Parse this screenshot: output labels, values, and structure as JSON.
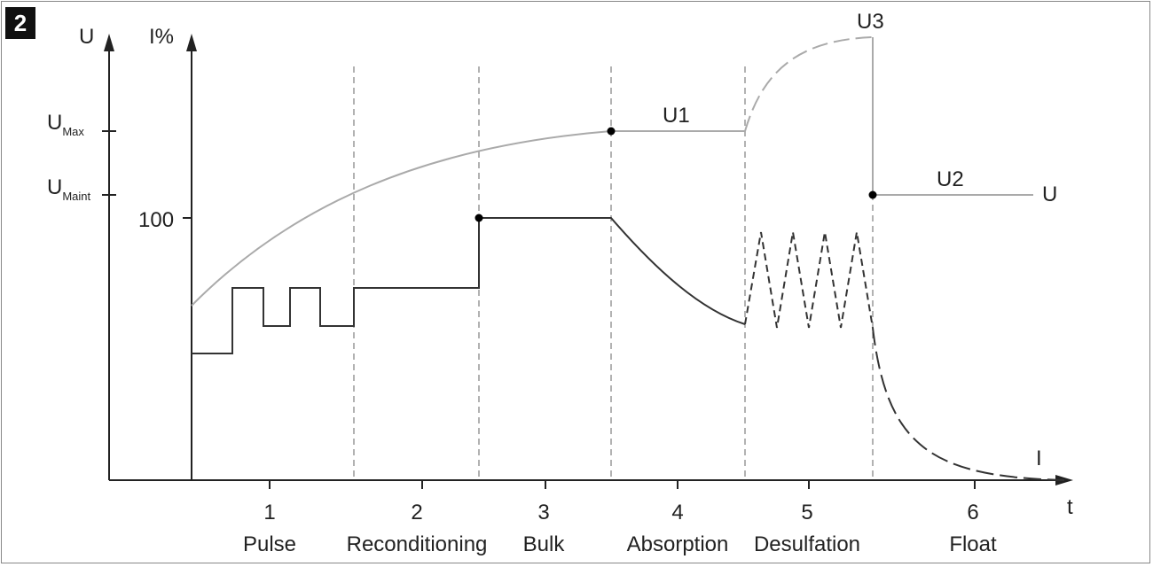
{
  "figure": {
    "badge": "2"
  },
  "axes": {
    "u_axis_label": "U",
    "i_axis_label": "I%",
    "t_axis_label": "t",
    "u_max_main": "U",
    "u_max_sub": "Max",
    "u_maint_main": "U",
    "u_maint_sub": "Maint",
    "i_100_label": "100"
  },
  "curve_labels": {
    "u1": "U1",
    "u2": "U2",
    "u3": "U3",
    "u_end": "U",
    "i_end": "I"
  },
  "phases": [
    {
      "number": "1",
      "name": "Pulse"
    },
    {
      "number": "2",
      "name": "Reconditioning"
    },
    {
      "number": "3",
      "name": "Bulk"
    },
    {
      "number": "4",
      "name": "Absorption"
    },
    {
      "number": "5",
      "name": "Desulfation"
    },
    {
      "number": "6",
      "name": "Float"
    }
  ],
  "colors": {
    "voltage_curve": "#aaaaaa",
    "current_curve": "#333333",
    "axis": "#222222",
    "phase_divider": "#888888"
  }
}
